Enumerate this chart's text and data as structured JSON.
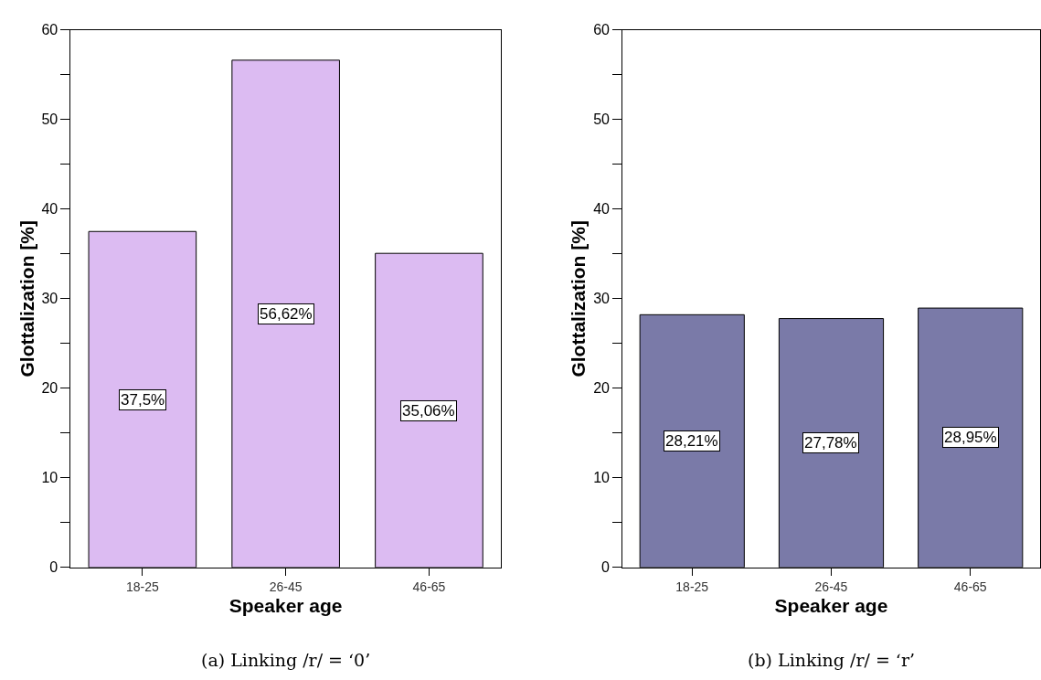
{
  "chart_data": [
    {
      "type": "bar",
      "categories": [
        "18-25",
        "26-45",
        "46-65"
      ],
      "values": [
        37.5,
        56.62,
        35.06
      ],
      "color": "#dcbbf2",
      "value_labels": [
        "37,5%",
        "56,62%",
        "35,06%"
      ],
      "xlabel": "Speaker age",
      "ylabel": "Glottalization [%]",
      "ylim": [
        0,
        60
      ],
      "yticks": [
        0,
        {
          "value": 5,
          "label": null
        },
        10,
        {
          "value": 15,
          "label": null
        },
        20,
        {
          "value": 25,
          "label": null
        },
        30,
        {
          "value": 35,
          "label": null
        },
        40,
        {
          "value": 45,
          "label": null
        },
        50,
        {
          "value": 55,
          "label": null
        },
        60
      ],
      "annotations": [
        "(a) Linking /r/ = ‘0’"
      ]
    },
    {
      "type": "bar",
      "categories": [
        "18-25",
        "26-45",
        "46-65"
      ],
      "values": [
        28.21,
        27.78,
        28.95
      ],
      "color": "#7a7aa8",
      "value_labels": [
        "28,21%",
        "27,78%",
        "28,95%"
      ],
      "xlabel": "Speaker age",
      "ylabel": "Glottalization [%]",
      "ylim": [
        0,
        60
      ],
      "yticks": [
        0,
        {
          "value": 5,
          "label": null
        },
        10,
        {
          "value": 15,
          "label": null
        },
        20,
        {
          "value": 25,
          "label": null
        },
        30,
        {
          "value": 35,
          "label": null
        },
        40,
        {
          "value": 45,
          "label": null
        },
        50,
        {
          "value": 55,
          "label": null
        },
        60
      ],
      "annotations": [
        "(b) Linking /r/ = ‘r’"
      ]
    }
  ]
}
